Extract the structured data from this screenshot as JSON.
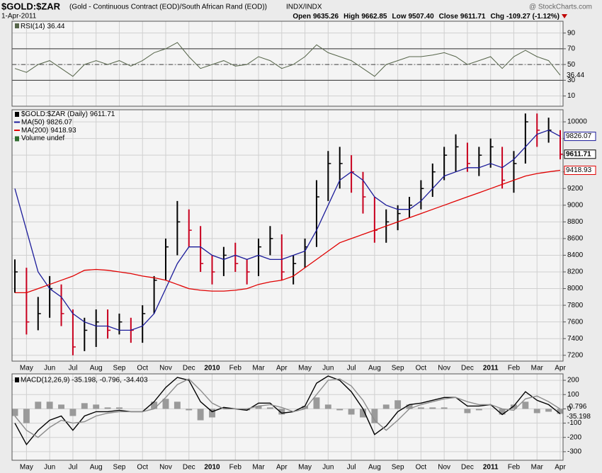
{
  "header": {
    "symbol": "$GOLD:$ZAR",
    "description": "(Gold - Continuous Contract (EOD)/South African Rand (EOD))",
    "exchange": "INDX/INDX",
    "source": "@ StockCharts.com",
    "date": "1-Apr-2011",
    "quote": [
      {
        "label": "Open",
        "value": "9635.26"
      },
      {
        "label": "High",
        "value": "9662.85"
      },
      {
        "label": "Low",
        "value": "9507.40"
      },
      {
        "label": "Close",
        "value": "9611.71"
      },
      {
        "label": "Chg",
        "value": "-109.27 (-1.12%)"
      }
    ]
  },
  "chart_data": [
    {
      "type": "line",
      "title": "RSI(14)",
      "color": "#56654a",
      "values": [
        45,
        40,
        50,
        55,
        45,
        35,
        50,
        55,
        50,
        55,
        48,
        55,
        65,
        70,
        78,
        60,
        45,
        50,
        55,
        48,
        50,
        60,
        55,
        45,
        50,
        60,
        75,
        65,
        60,
        55,
        45,
        35,
        50,
        55,
        60,
        60,
        62,
        65,
        60,
        50,
        55,
        60,
        45,
        60,
        68,
        60,
        55,
        36.44
      ],
      "ylim": [
        -3,
        105
      ],
      "yticks": [
        10,
        30,
        50,
        70,
        90
      ],
      "overbought": 70,
      "oversold": 30,
      "midline": 50,
      "grid": true
    },
    {
      "type": "ohlc",
      "categories": [
        null,
        "May",
        null,
        "Jun",
        null,
        "Jul",
        null,
        "Aug",
        null,
        "Sep",
        null,
        "Oct",
        null,
        "Nov",
        null,
        "Dec",
        null,
        "2010",
        null,
        "Feb",
        null,
        "Mar",
        null,
        "Apr",
        null,
        "May",
        null,
        "Jun",
        null,
        "Jul",
        null,
        "Aug",
        null,
        "Sep",
        null,
        "Oct",
        null,
        "Nov",
        null,
        "Dec",
        null,
        "2011",
        null,
        "Feb",
        null,
        "Mar",
        null,
        "Apr"
      ],
      "series": [
        {
          "name": "$GOLD:$ZAR (Daily)",
          "up_color": "#000000",
          "down_color": "#c8001e",
          "high": [
            8350,
            8250,
            7900,
            8150,
            8050,
            7750,
            7650,
            7750,
            7750,
            7700,
            7650,
            7800,
            8150,
            8600,
            9050,
            8950,
            8750,
            8400,
            8500,
            8550,
            8350,
            8600,
            8750,
            8650,
            8400,
            8600,
            9300,
            9650,
            9700,
            9600,
            9400,
            9100,
            8950,
            9000,
            9100,
            9300,
            9500,
            9700,
            9850,
            9750,
            9700,
            9800,
            9700,
            9650,
            10100,
            10100,
            10050,
            9900
          ],
          "low": [
            7950,
            7450,
            7500,
            7650,
            7550,
            7200,
            7250,
            7300,
            7400,
            7450,
            7350,
            7350,
            7700,
            8100,
            8400,
            8500,
            8200,
            8050,
            8150,
            8200,
            8050,
            8150,
            8400,
            8100,
            8050,
            8250,
            8500,
            9050,
            9200,
            9150,
            8900,
            8550,
            8550,
            8700,
            8850,
            8950,
            9100,
            9300,
            9400,
            9400,
            9350,
            9450,
            9200,
            9150,
            9500,
            9700,
            9750,
            9550
          ],
          "close": [
            8200,
            7600,
            7700,
            8000,
            7700,
            7300,
            7500,
            7600,
            7500,
            7600,
            7500,
            7700,
            8100,
            8500,
            8800,
            8700,
            8300,
            8200,
            8400,
            8300,
            8200,
            8500,
            8600,
            8200,
            8300,
            8500,
            9100,
            9500,
            9500,
            9400,
            9100,
            8700,
            8800,
            8900,
            9000,
            9200,
            9400,
            9600,
            9700,
            9500,
            9600,
            9700,
            9300,
            9500,
            10000,
            9900,
            9900,
            9611.71
          ]
        },
        {
          "name": "MA(50)",
          "color": "#1c1c9a",
          "values": [
            9200,
            8700,
            8200,
            8000,
            7900,
            7700,
            7600,
            7550,
            7550,
            7500,
            7500,
            7550,
            7700,
            8000,
            8300,
            8500,
            8500,
            8400,
            8350,
            8400,
            8350,
            8400,
            8350,
            8350,
            8400,
            8450,
            8700,
            9000,
            9300,
            9400,
            9300,
            9100,
            9000,
            8950,
            8950,
            9050,
            9200,
            9350,
            9400,
            9450,
            9450,
            9500,
            9450,
            9550,
            9700,
            9850,
            9900,
            9826.07
          ]
        },
        {
          "name": "MA(200)",
          "color": "#e00000",
          "values": [
            7950,
            7950,
            8000,
            8050,
            8100,
            8150,
            8220,
            8230,
            8220,
            8200,
            8180,
            8150,
            8130,
            8100,
            8050,
            8000,
            7980,
            7970,
            7970,
            7980,
            8000,
            8050,
            8080,
            8100,
            8150,
            8250,
            8350,
            8450,
            8550,
            8600,
            8650,
            8700,
            8750,
            8800,
            8850,
            8900,
            8950,
            9000,
            9050,
            9100,
            9150,
            9200,
            9250,
            9300,
            9350,
            9380,
            9400,
            9418.93
          ]
        }
      ],
      "volume": "Volume undef",
      "ylim": [
        7130,
        10145
      ],
      "yticks": [
        7200,
        7400,
        7600,
        7800,
        8000,
        8200,
        8400,
        8600,
        8800,
        9000,
        9200,
        9400,
        9600,
        9800,
        10000
      ],
      "grid": true
    },
    {
      "type": "macd",
      "legend": "MACD(12,26,9) -35.198, -0.796, -34.403",
      "categories": [
        null,
        "May",
        null,
        "Jun",
        null,
        "Jul",
        null,
        "Aug",
        null,
        "Sep",
        null,
        "Oct",
        null,
        "Nov",
        null,
        "Dec",
        null,
        "2010",
        null,
        "Feb",
        null,
        "Mar",
        null,
        "Apr",
        null,
        "May",
        null,
        "Jun",
        null,
        "Jul",
        null,
        "Aug",
        null,
        "Sep",
        null,
        "Oct",
        null,
        "Nov",
        null,
        "Dec",
        null,
        "2011",
        null,
        "Feb",
        null,
        "Mar",
        null,
        "Apr"
      ],
      "series": [
        {
          "style": "histogram",
          "color": "#9a9a9a",
          "values": [
            -50,
            -100,
            50,
            50,
            30,
            -50,
            40,
            30,
            10,
            10,
            0,
            0,
            50,
            70,
            50,
            -10,
            -80,
            -60,
            10,
            0,
            -10,
            20,
            10,
            -40,
            0,
            20,
            80,
            30,
            -10,
            -40,
            -60,
            -100,
            30,
            60,
            30,
            10,
            10,
            10,
            0,
            -30,
            -10,
            0,
            -40,
            30,
            50,
            -30,
            -20,
            -34.403
          ]
        },
        {
          "style": "line",
          "color": "#000000",
          "values": [
            -100,
            -250,
            -150,
            -80,
            -50,
            -150,
            -50,
            -20,
            -20,
            -10,
            -20,
            -20,
            50,
            150,
            220,
            200,
            50,
            -20,
            10,
            0,
            -10,
            40,
            40,
            -30,
            -20,
            20,
            180,
            230,
            200,
            120,
            0,
            -180,
            -120,
            -20,
            30,
            40,
            60,
            80,
            80,
            20,
            20,
            30,
            -40,
            20,
            120,
            60,
            30,
            -35.198
          ]
        },
        {
          "style": "line",
          "color": "#8c8c8c",
          "values": [
            -50,
            -150,
            -200,
            -130,
            -80,
            -100,
            -90,
            -50,
            -30,
            -20,
            -20,
            -20,
            0,
            80,
            170,
            210,
            130,
            40,
            0,
            0,
            0,
            20,
            30,
            10,
            -20,
            0,
            100,
            200,
            210,
            160,
            60,
            -80,
            -150,
            -80,
            0,
            30,
            50,
            70,
            80,
            50,
            30,
            30,
            0,
            -10,
            70,
            90,
            50,
            -0.796
          ]
        }
      ],
      "ylim": [
        -360,
        245
      ],
      "yticks": [
        -300,
        -200,
        -100,
        0,
        100,
        200
      ],
      "grid": true
    }
  ]
}
